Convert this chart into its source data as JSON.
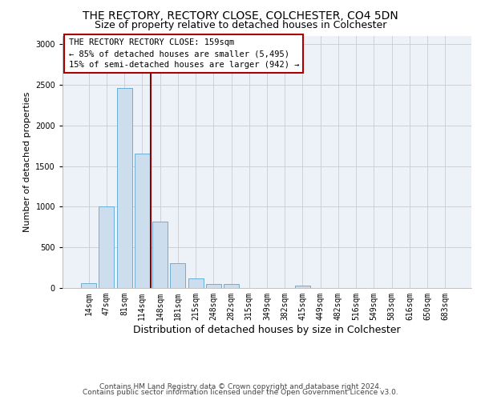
{
  "title1": "THE RECTORY, RECTORY CLOSE, COLCHESTER, CO4 5DN",
  "title2": "Size of property relative to detached houses in Colchester",
  "xlabel": "Distribution of detached houses by size in Colchester",
  "ylabel": "Number of detached properties",
  "categories": [
    "14sqm",
    "47sqm",
    "81sqm",
    "114sqm",
    "148sqm",
    "181sqm",
    "215sqm",
    "248sqm",
    "282sqm",
    "315sqm",
    "349sqm",
    "382sqm",
    "415sqm",
    "449sqm",
    "482sqm",
    "516sqm",
    "549sqm",
    "583sqm",
    "616sqm",
    "650sqm",
    "683sqm"
  ],
  "values": [
    60,
    1000,
    2460,
    1650,
    820,
    305,
    120,
    50,
    45,
    0,
    0,
    0,
    30,
    0,
    0,
    0,
    0,
    0,
    0,
    0,
    0
  ],
  "bar_color": "#ccdded",
  "bar_edge_color": "#6aaed6",
  "vline_x_index": 4,
  "vline_color": "#8b0000",
  "annotation_text": "THE RECTORY RECTORY CLOSE: 159sqm\n← 85% of detached houses are smaller (5,495)\n15% of semi-detached houses are larger (942) →",
  "box_edge_color": "#aa0000",
  "ylim": [
    0,
    3100
  ],
  "yticks": [
    0,
    500,
    1000,
    1500,
    2000,
    2500,
    3000
  ],
  "grid_color": "#c8ccd0",
  "background_color": "#edf2f8",
  "footer1": "Contains HM Land Registry data © Crown copyright and database right 2024.",
  "footer2": "Contains public sector information licensed under the Open Government Licence v3.0.",
  "title_fontsize": 10,
  "subtitle_fontsize": 9,
  "ylabel_fontsize": 8,
  "xlabel_fontsize": 9,
  "tick_fontsize": 7,
  "annotation_fontsize": 7.5,
  "footer_fontsize": 6.5
}
